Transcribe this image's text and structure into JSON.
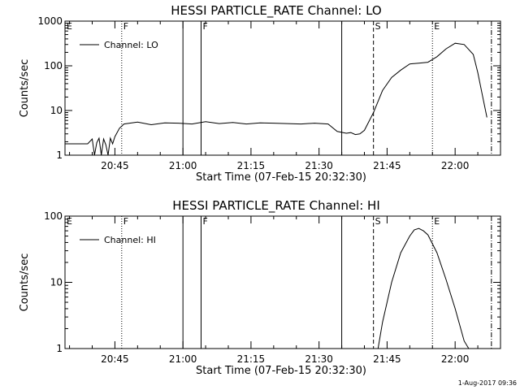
{
  "chart_data": [
    {
      "type": "line",
      "title": "HESSI PARTICLE_RATE Channel: LO",
      "xlabel": "Start Time (07-Feb-15 20:32:30)",
      "ylabel": "Counts/sec",
      "y_scale": "log",
      "xlim": [
        "20:34",
        "22:10"
      ],
      "ylim": [
        1,
        1000
      ],
      "x_ticks": [
        "20:45",
        "21:00",
        "21:15",
        "21:30",
        "21:45",
        "22:00"
      ],
      "y_ticks": [
        "1",
        "10",
        "100",
        "1000"
      ],
      "legend": {
        "position": "top-left",
        "entries": [
          "Channel: LO"
        ]
      },
      "series": [
        {
          "name": "Channel: LO",
          "x": [
            "20:34",
            "20:39",
            "20:40",
            "20:40.5",
            "20:41",
            "20:41.5",
            "20:42",
            "20:42.5",
            "20:43",
            "20:43.5",
            "20:44",
            "20:44.5",
            "20:45",
            "20:46",
            "20:47",
            "20:50",
            "20:53",
            "20:56",
            "20:59",
            "21:02",
            "21:05",
            "21:08",
            "21:11",
            "21:14",
            "21:17",
            "21:20",
            "21:23",
            "21:26",
            "21:29",
            "21:32",
            "21:34",
            "21:36",
            "21:37",
            "21:38",
            "21:39",
            "21:40",
            "21:42",
            "21:44",
            "21:46",
            "21:48",
            "21:50",
            "21:52",
            "21:54",
            "21:56",
            "21:58",
            "22:00",
            "22:02",
            "22:04",
            "22:05",
            "22:06",
            "22:07"
          ],
          "y": [
            1.8,
            1.8,
            2.3,
            1.0,
            1.9,
            2.4,
            1.0,
            2.3,
            1.7,
            1.0,
            2.4,
            1.8,
            2.6,
            4.0,
            5.0,
            5.5,
            4.8,
            5.3,
            5.2,
            5.0,
            5.6,
            5.1,
            5.4,
            5.0,
            5.3,
            5.2,
            5.1,
            5.0,
            5.2,
            5.0,
            3.4,
            3.1,
            3.2,
            2.9,
            3.0,
            3.6,
            9.0,
            28,
            55,
            80,
            110,
            115,
            120,
            160,
            240,
            320,
            300,
            180,
            70,
            22,
            7
          ]
        }
      ],
      "annotations": [
        {
          "label": "E",
          "x": "20:34",
          "style": "solid"
        },
        {
          "label": "F",
          "x": "20:46.5",
          "style": "dotted"
        },
        {
          "label": "",
          "x": "21:00",
          "style": "solid"
        },
        {
          "label": "F",
          "x": "21:04",
          "style": "solid"
        },
        {
          "label": "",
          "x": "21:35",
          "style": "solid"
        },
        {
          "label": "S",
          "x": "21:42",
          "style": "dashed"
        },
        {
          "label": "E",
          "x": "21:55",
          "style": "dotted"
        },
        {
          "label": "",
          "x": "22:08",
          "style": "dash-dot"
        }
      ]
    },
    {
      "type": "line",
      "title": "HESSI PARTICLE_RATE Channel: HI",
      "xlabel": "Start Time (07-Feb-15 20:32:30)",
      "ylabel": "Counts/sec",
      "y_scale": "log",
      "xlim": [
        "20:34",
        "22:10"
      ],
      "ylim": [
        1,
        100
      ],
      "x_ticks": [
        "20:45",
        "21:00",
        "21:15",
        "21:30",
        "21:45",
        "22:00"
      ],
      "y_ticks": [
        "1",
        "10",
        "100"
      ],
      "legend": {
        "position": "top-left",
        "entries": [
          "Channel: HI"
        ]
      },
      "series": [
        {
          "name": "Channel: HI",
          "x": [
            "21:43",
            "21:44",
            "21:46",
            "21:48",
            "21:50",
            "21:51",
            "21:52",
            "21:53",
            "21:54",
            "21:56",
            "21:58",
            "22:00",
            "22:02",
            "22:03"
          ],
          "y": [
            1.0,
            2.5,
            10,
            28,
            50,
            62,
            65,
            60,
            52,
            28,
            11,
            4.0,
            1.3,
            1.0
          ]
        }
      ],
      "annotations": [
        {
          "label": "E",
          "x": "20:34",
          "style": "solid"
        },
        {
          "label": "F",
          "x": "20:46.5",
          "style": "dotted"
        },
        {
          "label": "",
          "x": "21:00",
          "style": "solid"
        },
        {
          "label": "F",
          "x": "21:04",
          "style": "solid"
        },
        {
          "label": "",
          "x": "21:35",
          "style": "solid"
        },
        {
          "label": "S",
          "x": "21:42",
          "style": "dashed"
        },
        {
          "label": "E",
          "x": "21:55",
          "style": "dotted"
        },
        {
          "label": "",
          "x": "22:08",
          "style": "dash-dot"
        }
      ]
    }
  ],
  "footer": {
    "timestamp": "1-Aug-2017 09:36"
  }
}
